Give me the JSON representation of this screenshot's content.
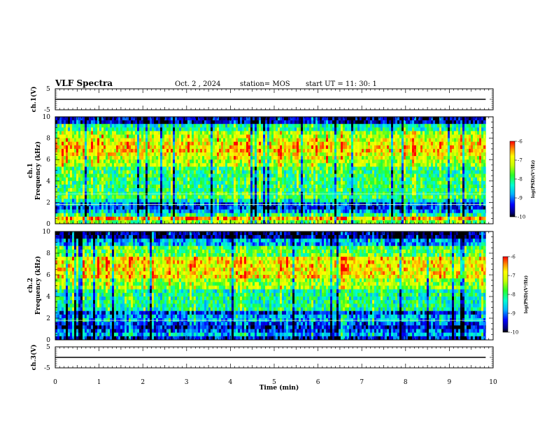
{
  "header": {
    "title": "VLF Spectra",
    "date": "Oct. 2 , 2024",
    "station": "station= MOS",
    "start": "start  UT =   11: 30: 1"
  },
  "chart_data": [
    {
      "type": "line",
      "id": "ch1-waveform",
      "ylabel": "ch.1(V)",
      "ylim": [
        -5,
        5
      ],
      "yticks": [
        5,
        -5
      ],
      "xlim": [
        0,
        10
      ],
      "series": [
        {
          "x": [
            0,
            9.83
          ],
          "y": [
            0,
            0
          ],
          "color": "#000000"
        }
      ]
    },
    {
      "type": "heatmap",
      "id": "ch1-spectrogram",
      "ylabel_top": "ch.1",
      "ylabel": "Frequency (kHz)",
      "ylim": [
        0,
        10
      ],
      "yticks": [
        0,
        2,
        4,
        6,
        8,
        10
      ],
      "xlim": [
        0,
        10
      ],
      "data_xmax": 9.83,
      "colorbar": {
        "label": "log(PSD)(V²/Hz)",
        "range": [
          -10,
          -6
        ],
        "ticks": [
          "-6",
          "-7",
          "-8",
          "-9",
          "-10"
        ]
      },
      "interference_lines_khz": [
        1.8,
        2.8
      ]
    },
    {
      "type": "heatmap",
      "id": "ch2-spectrogram",
      "ylabel_top": "ch.2",
      "ylabel": "Frequency (kHz)",
      "ylim": [
        0,
        10
      ],
      "yticks": [
        0,
        2,
        4,
        6,
        8,
        10
      ],
      "xlim": [
        0,
        10
      ],
      "data_xmax": 9.83,
      "colorbar": {
        "label": "log(PSD)(V²/Hz)",
        "range": [
          -10,
          -6
        ],
        "ticks": [
          "-6",
          "-7",
          "-8",
          "-9",
          "-10"
        ]
      },
      "interference_lines_khz": [
        1.8
      ]
    },
    {
      "type": "line",
      "id": "ch3-waveform",
      "ylabel": "ch.3(V)",
      "ylim": [
        -5,
        5
      ],
      "yticks": [
        5,
        -5
      ],
      "xlim": [
        0,
        10
      ],
      "xlabel": "Time (min)",
      "xticks": [
        "0",
        "1",
        "2",
        "3",
        "4",
        "5",
        "6",
        "7",
        "8",
        "9",
        "10"
      ],
      "series": [
        {
          "x": [
            0,
            9.83
          ],
          "y": [
            0,
            0
          ],
          "color": "#000000"
        }
      ]
    }
  ]
}
